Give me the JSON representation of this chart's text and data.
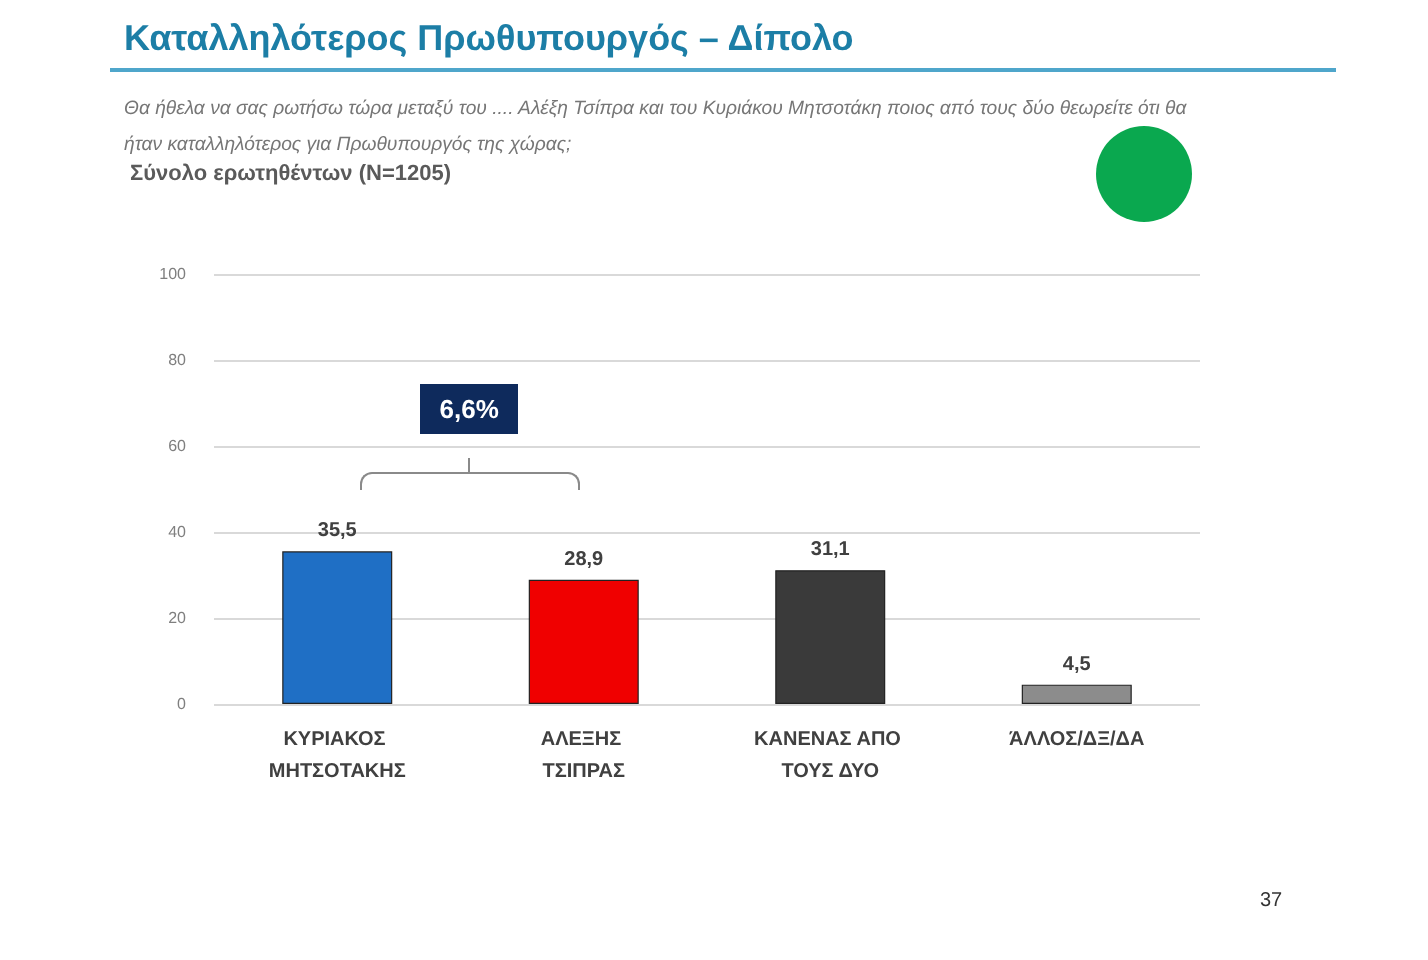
{
  "chart_data": {
    "type": "bar",
    "title": "Καταλληλότερος Πρωθυπουργός – Δίπολο",
    "subtitle": "Θα ήθελα να σας ρωτήσω τώρα μεταξύ του .... Αλέξη Τσίπρα και του Κυριάκου Μητσοτάκη ποιος από τους δύο θεωρείτε ότι θα ήταν καταλληλότερος για Πρωθυπουργός της χώρας;",
    "annotations": [
      "Σύνολο ερωτηθέντων (N=1205)",
      "6,6%",
      "37"
    ],
    "categories": [
      "ΚΥΡΙΑΚΟΣ ΜΗΤΣΟΤΑΚΗΣ",
      "ΑΛΕΞΗΣ ΤΣΙΠΡΑΣ",
      "ΚΑΝΕΝΑΣ ΑΠΟ ΤΟΥΣ ΔΥΟ",
      "ΆΛΛΟΣ/ΔΞ/ΔΑ"
    ],
    "values": [
      35.5,
      28.9,
      31.1,
      4.5
    ],
    "value_labels": [
      "35,5",
      "28,9",
      "31,1",
      "4,5"
    ],
    "colors": [
      "#1f6fc5",
      "#f00000",
      "#3a3a3a",
      "#8c8c8c"
    ],
    "ylim": [
      0,
      100
    ],
    "yticks": [
      0,
      20,
      40,
      60,
      80,
      100
    ],
    "grid": "y"
  }
}
